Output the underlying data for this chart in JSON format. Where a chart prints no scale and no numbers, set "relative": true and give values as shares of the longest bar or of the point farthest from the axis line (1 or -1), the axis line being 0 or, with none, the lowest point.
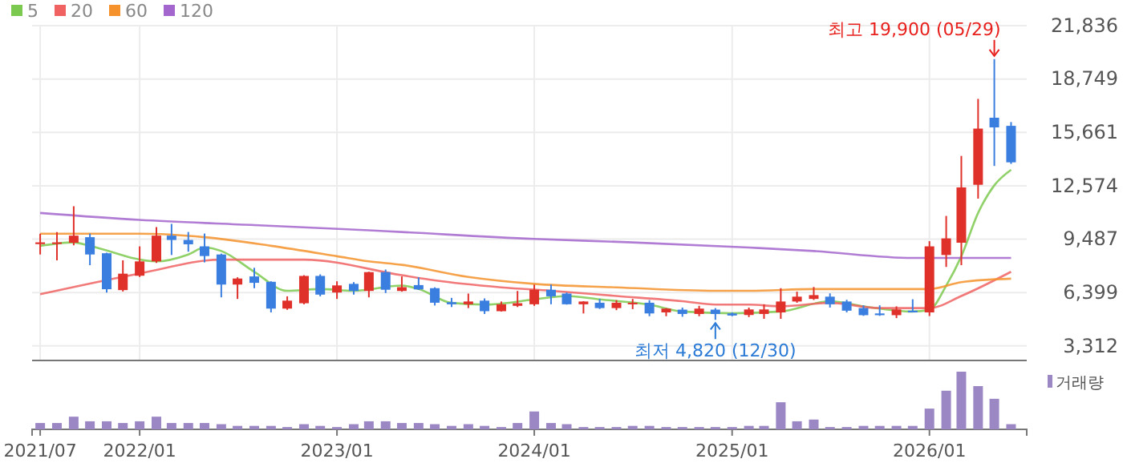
{
  "chart_data": [
    {
      "type": "candlestick",
      "legend": "top left",
      "grid": true,
      "tick_labels": "y",
      "x": [
        "2021-07",
        "2021-08",
        "2021-09",
        "2021-10",
        "2021-11",
        "2021-12",
        "2022-01",
        "2022-02",
        "2022-03",
        "2022-04",
        "2022-05",
        "2022-06",
        "2022-07",
        "2022-08",
        "2022-09",
        "2022-10",
        "2022-11",
        "2022-12",
        "2023-01",
        "2023-02",
        "2023-03",
        "2023-04",
        "2023-05",
        "2023-06",
        "2023-07",
        "2023-08",
        "2023-09",
        "2023-10",
        "2023-11",
        "2023-12",
        "2024-01",
        "2024-02",
        "2024-03",
        "2024-04",
        "2024-05",
        "2024-06",
        "2024-07",
        "2024-08",
        "2024-09",
        "2024-10",
        "2024-11",
        "2024-12",
        "2025-01",
        "2025-02",
        "2025-03",
        "2025-04",
        "2025-05",
        "2025-06",
        "2025-07",
        "2025-08",
        "2025-09",
        "2025-10",
        "2025-11",
        "2025-12",
        "2026-01",
        "2026-02",
        "2026-03",
        "2026-04",
        "2026-05",
        "2026-06"
      ],
      "ohlc": [
        [
          9200,
          9800,
          8600,
          9300
        ],
        [
          9250,
          9900,
          8260,
          9300
        ],
        [
          9280,
          11390,
          9130,
          9690
        ],
        [
          9600,
          9810,
          7980,
          8600
        ],
        [
          8670,
          8700,
          6400,
          6590
        ],
        [
          6540,
          8260,
          6460,
          7490
        ],
        [
          7370,
          9070,
          7300,
          8200
        ],
        [
          8200,
          10180,
          8110,
          9690
        ],
        [
          9690,
          10370,
          8570,
          9440
        ],
        [
          9440,
          9900,
          8760,
          9190
        ],
        [
          9070,
          9810,
          8140,
          8510
        ],
        [
          8600,
          8650,
          6120,
          6860
        ],
        [
          6860,
          7280,
          6030,
          7210
        ],
        [
          7330,
          7830,
          6650,
          6960
        ],
        [
          7020,
          7050,
          5250,
          5470
        ],
        [
          5470,
          6180,
          5400,
          5930
        ],
        [
          5780,
          7400,
          5720,
          7360
        ],
        [
          7360,
          7450,
          6180,
          6280
        ],
        [
          6400,
          7050,
          6030,
          6810
        ],
        [
          6900,
          7000,
          6280,
          6490
        ],
        [
          6490,
          7600,
          6120,
          7580
        ],
        [
          7580,
          7730,
          6370,
          6560
        ],
        [
          6490,
          7330,
          6450,
          6710
        ],
        [
          6830,
          7280,
          6550,
          6580
        ],
        [
          6650,
          6700,
          5650,
          5810
        ],
        [
          5840,
          6090,
          5560,
          5720
        ],
        [
          5720,
          6340,
          5500,
          5880
        ],
        [
          5930,
          6060,
          5160,
          5320
        ],
        [
          5320,
          5880,
          5300,
          5720
        ],
        [
          5630,
          6490,
          5560,
          5780
        ],
        [
          5720,
          6860,
          5630,
          6560
        ],
        [
          6560,
          6860,
          5720,
          6180
        ],
        [
          6340,
          6400,
          5700,
          5720
        ],
        [
          5720,
          5900,
          5190,
          5880
        ],
        [
          5810,
          6030,
          5450,
          5500
        ],
        [
          5500,
          5960,
          5380,
          5810
        ],
        [
          5720,
          6030,
          5440,
          5810
        ],
        [
          5810,
          5960,
          5030,
          5190
        ],
        [
          5250,
          5500,
          5030,
          5470
        ],
        [
          5410,
          5530,
          5000,
          5160
        ],
        [
          5160,
          5630,
          5030,
          5470
        ],
        [
          5410,
          5500,
          4820,
          5160
        ],
        [
          5190,
          5250,
          5030,
          5070
        ],
        [
          5100,
          5530,
          4980,
          5420
        ],
        [
          5160,
          5720,
          4880,
          5420
        ],
        [
          5250,
          6650,
          4880,
          5880
        ],
        [
          5880,
          6450,
          5810,
          6160
        ],
        [
          6030,
          6720,
          5970,
          6250
        ],
        [
          6160,
          6350,
          5530,
          5720
        ],
        [
          5880,
          5980,
          5250,
          5350
        ],
        [
          5500,
          5660,
          5050,
          5090
        ],
        [
          5190,
          5660,
          5050,
          5090
        ],
        [
          5090,
          5600,
          4920,
          5420
        ],
        [
          5350,
          6010,
          5250,
          5250
        ],
        [
          5250,
          9370,
          5040,
          9070
        ],
        [
          8570,
          10830,
          7880,
          9530
        ],
        [
          9280,
          14300,
          7980,
          12480
        ],
        [
          12630,
          17600,
          11830,
          15880
        ],
        [
          16510,
          19900,
          13720,
          15950
        ],
        [
          16040,
          16260,
          13840,
          13930
        ]
      ],
      "series": [
        {
          "name": "5",
          "type": "line",
          "color": "#7cc94f",
          "x": [
            "2021-07",
            "2021-09",
            "2021-10",
            "2022-02",
            "2022-04",
            "2022-05",
            "2022-06",
            "2022-08",
            "2022-10",
            "2022-12",
            "2023-02",
            "2023-05",
            "2023-06",
            "2023-08",
            "2023-10",
            "2024-01",
            "2024-03",
            "2024-05",
            "2024-08",
            "2024-10",
            "2025-01",
            "2025-04",
            "2025-07",
            "2025-09",
            "2025-12",
            "2026-01",
            "2026-02",
            "2026-03",
            "2026-04",
            "2026-05",
            "2026-06"
          ],
          "values": [
            9100,
            9300,
            9100,
            8200,
            8600,
            9000,
            8800,
            7600,
            6500,
            6600,
            6500,
            6800,
            6600,
            5800,
            5700,
            6000,
            6200,
            6000,
            5700,
            5300,
            5200,
            5300,
            5900,
            5600,
            5300,
            5400,
            6800,
            8500,
            11000,
            12600,
            13500
          ]
        },
        {
          "name": "20",
          "type": "line",
          "color": "#f06262",
          "x": [
            "2021-07",
            "2022-01",
            "2022-06",
            "2022-11",
            "2023-05",
            "2023-07",
            "2023-11",
            "2024-02",
            "2024-06",
            "2024-10",
            "2024-12",
            "2025-02",
            "2025-04",
            "2025-07",
            "2025-10",
            "2026-01",
            "2026-03",
            "2026-06"
          ],
          "values": [
            6300,
            7500,
            8300,
            8300,
            7400,
            7100,
            6700,
            6500,
            6200,
            5900,
            5700,
            5700,
            5600,
            5800,
            5500,
            5500,
            6200,
            7600
          ]
        },
        {
          "name": "60",
          "type": "line",
          "color": "#f5922c",
          "x": [
            "2021-07",
            "2022-01",
            "2022-05",
            "2022-09",
            "2023-01",
            "2023-03",
            "2023-05",
            "2023-09",
            "2024-01",
            "2024-06",
            "2024-12",
            "2025-02",
            "2025-06",
            "2025-10",
            "2026-01",
            "2026-03",
            "2026-06"
          ],
          "values": [
            9800,
            9800,
            9600,
            9100,
            8500,
            8200,
            8000,
            7300,
            6900,
            6700,
            6500,
            6500,
            6600,
            6600,
            6600,
            7000,
            7200
          ]
        },
        {
          "name": "120",
          "type": "line",
          "color": "#a366cc",
          "x": [
            "2021-07",
            "2022-01",
            "2022-08",
            "2023-03",
            "2023-05",
            "2024-01",
            "2024-07",
            "2025-02",
            "2025-06",
            "2025-12",
            "2026-03",
            "2026-06"
          ],
          "values": [
            11000,
            10600,
            10300,
            10000,
            9900,
            9500,
            9300,
            9000,
            8800,
            8400,
            8400,
            8400
          ]
        }
      ],
      "xlim": [
        "2021-06-16",
        "2026-06-30"
      ],
      "xticks": [
        {
          "value": "2021-07",
          "label": null
        },
        {
          "value": "2022-01",
          "label": null
        },
        {
          "value": "2023-01",
          "label": null
        },
        {
          "value": "2024-01",
          "label": null
        },
        {
          "value": "2025-01",
          "label": null
        },
        {
          "value": "2026-01",
          "label": null
        }
      ],
      "ylim": [
        2470,
        21836
      ],
      "yticks": [
        {
          "value": 3312,
          "label": "3,312"
        },
        {
          "value": 6399,
          "label": "6,399"
        },
        {
          "value": 9487,
          "label": "9,487"
        },
        {
          "value": 12574,
          "label": "12,574"
        },
        {
          "value": 15661,
          "label": "15,661"
        },
        {
          "value": 18749,
          "label": "18,749"
        },
        {
          "value": 21836,
          "label": "21,836"
        }
      ],
      "annotations": [
        {
          "text": "최고 19,900 (05/29)",
          "x": "2026-05",
          "y": 19900
        },
        {
          "text": "최저 4,820 (12/30)",
          "x": "2024-12",
          "y": 4820
        }
      ]
    },
    {
      "type": "bar",
      "relative": true,
      "legend": "top right",
      "tick_labels": "x",
      "x": [
        "2021-07",
        "2021-08",
        "2021-09",
        "2021-10",
        "2021-11",
        "2021-12",
        "2022-01",
        "2022-02",
        "2022-03",
        "2022-04",
        "2022-05",
        "2022-06",
        "2022-07",
        "2022-08",
        "2022-09",
        "2022-10",
        "2022-11",
        "2022-12",
        "2023-01",
        "2023-02",
        "2023-03",
        "2023-04",
        "2023-05",
        "2023-06",
        "2023-07",
        "2023-08",
        "2023-09",
        "2023-10",
        "2023-11",
        "2023-12",
        "2024-01",
        "2024-02",
        "2024-03",
        "2024-04",
        "2024-05",
        "2024-06",
        "2024-07",
        "2024-08",
        "2024-09",
        "2024-10",
        "2024-11",
        "2024-12",
        "2025-01",
        "2025-02",
        "2025-03",
        "2025-04",
        "2025-05",
        "2025-06",
        "2025-07",
        "2025-08",
        "2025-09",
        "2025-10",
        "2025-11",
        "2025-12",
        "2026-01",
        "2026-02",
        "2026-03",
        "2026-04",
        "2026-05",
        "2026-06"
      ],
      "series": [
        {
          "name": "거래량",
          "color": "#9b87c4",
          "values": [
            0.11,
            0.11,
            0.22,
            0.14,
            0.14,
            0.11,
            0.14,
            0.22,
            0.11,
            0.11,
            0.11,
            0.09,
            0.06,
            0.06,
            0.06,
            0.04,
            0.09,
            0.06,
            0.04,
            0.09,
            0.14,
            0.14,
            0.11,
            0.11,
            0.09,
            0.06,
            0.09,
            0.06,
            0.04,
            0.11,
            0.31,
            0.11,
            0.09,
            0.04,
            0.04,
            0.04,
            0.06,
            0.06,
            0.04,
            0.04,
            0.04,
            0.04,
            0.04,
            0.06,
            0.06,
            0.47,
            0.14,
            0.17,
            0.04,
            0.04,
            0.06,
            0.06,
            0.06,
            0.06,
            0.36,
            0.67,
            1,
            0.75,
            0.53,
            0.09
          ]
        }
      ],
      "xlim": [
        "2021-06-16",
        "2026-06-30"
      ],
      "xticks": [
        {
          "value": "2021-07",
          "label": "2021/07"
        },
        {
          "value": "2022-01",
          "label": "2022/01"
        },
        {
          "value": "2023-01",
          "label": "2023/01"
        },
        {
          "value": "2024-01",
          "label": "2024/01"
        },
        {
          "value": "2025-01",
          "label": "2025/01"
        },
        {
          "value": "2026-01",
          "label": "2026/01"
        }
      ]
    }
  ]
}
